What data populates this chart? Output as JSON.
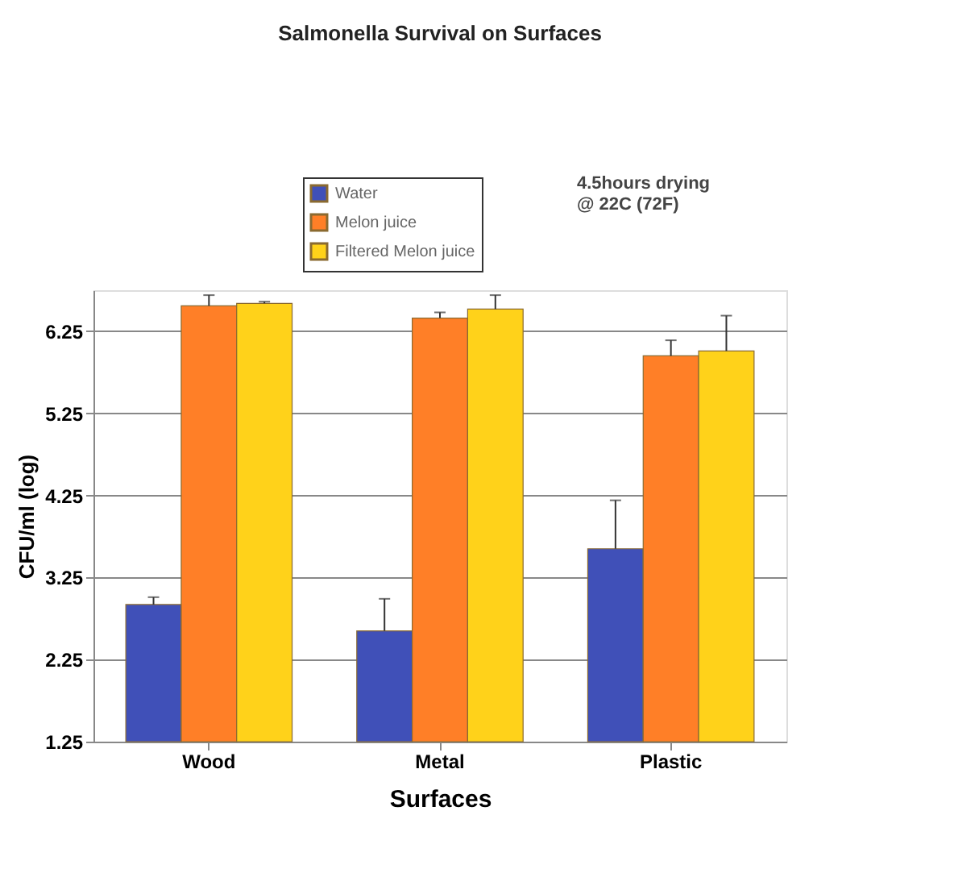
{
  "chart_data": {
    "type": "bar",
    "title": "Salmonella Survival on Surfaces",
    "xlabel": "Surfaces",
    "ylabel": "CFU/ml (log)",
    "categories": [
      "Wood",
      "Metal",
      "Plastic"
    ],
    "series": [
      {
        "name": "Water",
        "color": "#4050b8",
        "values": [
          2.92,
          2.6,
          3.6
        ],
        "errors": [
          [
            2.92,
            3.01
          ],
          [
            2.6,
            2.99
          ],
          [
            3.6,
            4.19
          ]
        ]
      },
      {
        "name": "Melon juice",
        "color": "#ff7f27",
        "values": [
          6.56,
          6.41,
          5.95
        ],
        "errors": [
          [
            6.56,
            6.69
          ],
          [
            6.41,
            6.48
          ],
          [
            5.95,
            6.14
          ]
        ]
      },
      {
        "name": "Filtered Melon juice",
        "color": "#ffd21a",
        "values": [
          6.59,
          6.52,
          6.01
        ],
        "errors": [
          [
            6.59,
            6.61
          ],
          [
            6.52,
            6.69
          ],
          [
            6.01,
            6.44
          ]
        ]
      }
    ],
    "ylim": [
      1.25,
      6.75
    ],
    "yticks": [
      1.25,
      2.25,
      3.25,
      4.25,
      5.25,
      6.25
    ],
    "grid": "y",
    "legend": "top",
    "annotations": [
      "4.5hours drying\n@ 22C (72F)"
    ]
  }
}
